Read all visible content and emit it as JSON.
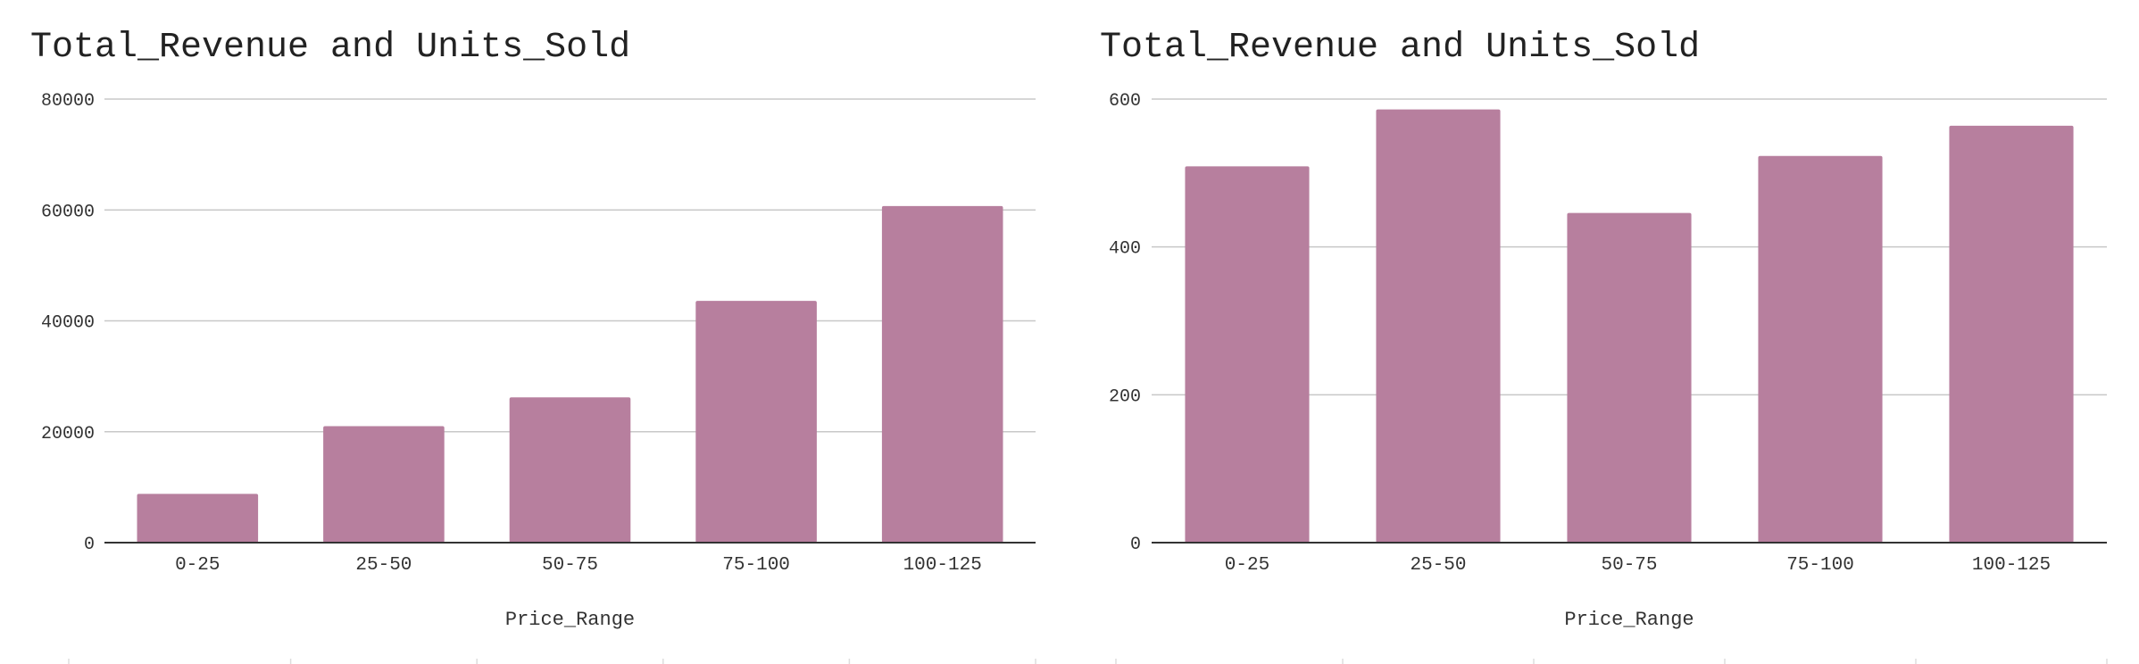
{
  "chart_data": [
    {
      "type": "bar",
      "title": "Total_Revenue and Units_Sold",
      "xlabel": "Price_Range",
      "ylabel": "",
      "categories": [
        "0-25",
        "25-50",
        "50-75",
        "75-100",
        "100-125"
      ],
      "values": [
        8800,
        21000,
        26200,
        43600,
        60700
      ],
      "ylim": [
        0,
        80000
      ],
      "yticks": [
        "0",
        "20000",
        "40000",
        "60000",
        "80000"
      ],
      "grid": true,
      "bar_color": "#b77f9e"
    },
    {
      "type": "bar",
      "title": "Total_Revenue and Units_Sold",
      "xlabel": "Price_Range",
      "ylabel": "",
      "categories": [
        "0-25",
        "25-50",
        "50-75",
        "75-100",
        "100-125"
      ],
      "values": [
        509,
        586,
        446,
        523,
        564
      ],
      "ylim": [
        0,
        600
      ],
      "yticks": [
        "0",
        "200",
        "400",
        "600"
      ],
      "grid": true,
      "bar_color": "#b77f9e"
    }
  ]
}
